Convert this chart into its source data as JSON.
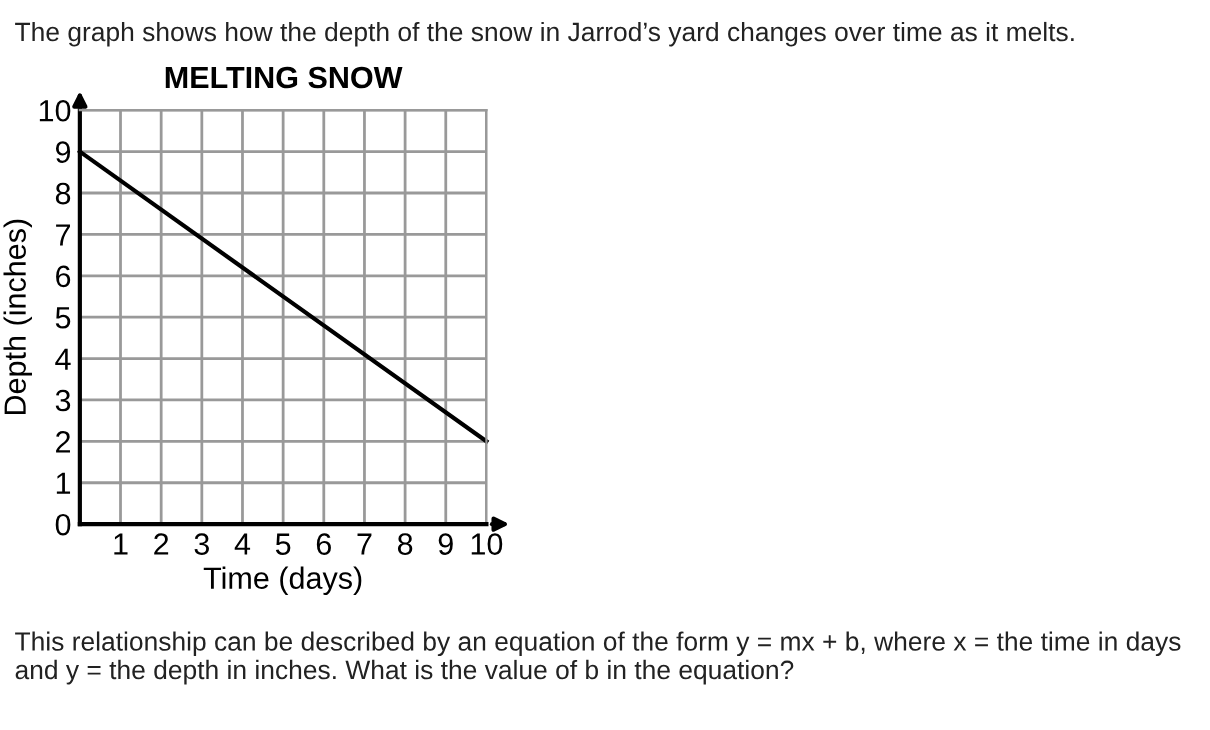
{
  "chart_data": {
    "type": "line",
    "title": "MELTING SNOW",
    "xlabel": "Time (days)",
    "ylabel": "Depth (inches)",
    "x": [
      0,
      10
    ],
    "series": [
      {
        "color": "#000000",
        "values": [
          9,
          2
        ]
      }
    ],
    "xlim": [
      0,
      10
    ],
    "ylim": [
      0,
      10
    ],
    "xticks": [
      1,
      2,
      3,
      4,
      5,
      6,
      7,
      8,
      9,
      10
    ],
    "yticks": [
      0,
      1,
      2,
      3,
      4,
      5,
      6,
      7,
      8,
      9,
      10
    ],
    "grid": true,
    "marker": "none",
    "line_style": "solid",
    "annotations": [
      "The graph shows how the depth of the snow in Jarrod’s yard changes over time as it melts.",
      "This relationship can be described by an equation of the form y = mx + b, where x = the time in days and y = the depth in inches. What is the value of b in the equation?"
    ]
  }
}
